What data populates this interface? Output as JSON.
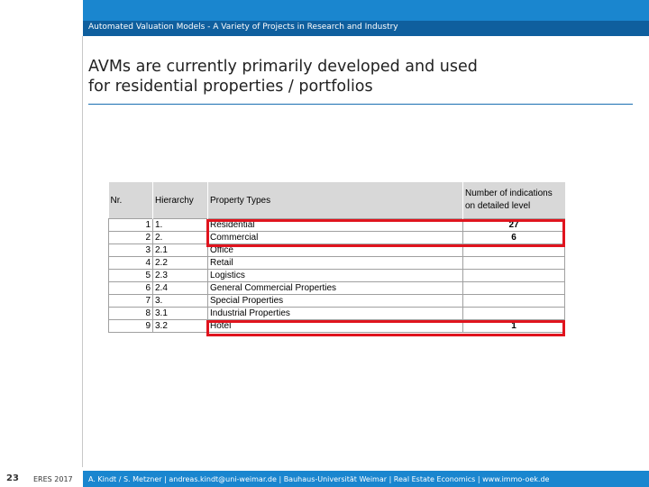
{
  "header": {
    "subtitle": "Automated Valuation Models - A Variety of Projects in Research and Industry"
  },
  "slide": {
    "title_line1": "AVMs are currently primarily developed and used",
    "title_line2": "for residential properties / portfolios"
  },
  "table": {
    "columns": [
      "Nr.",
      "Hierarchy",
      "Property Types",
      "Number of indications on detailed level"
    ],
    "rows": [
      {
        "nr": "1",
        "hierarchy": "1.",
        "type": "Residential",
        "count": "27"
      },
      {
        "nr": "2",
        "hierarchy": "2.",
        "type": "Commercial",
        "count": "6"
      },
      {
        "nr": "3",
        "hierarchy": "2.1",
        "type": "Office",
        "count": ""
      },
      {
        "nr": "4",
        "hierarchy": "2.2",
        "type": "Retail",
        "count": ""
      },
      {
        "nr": "5",
        "hierarchy": "2.3",
        "type": "Logistics",
        "count": ""
      },
      {
        "nr": "6",
        "hierarchy": "2.4",
        "type": "General Commercial Properties",
        "count": ""
      },
      {
        "nr": "7",
        "hierarchy": "3.",
        "type": "Special Properties",
        "count": ""
      },
      {
        "nr": "8",
        "hierarchy": "3.1",
        "type": "Industrial Properties",
        "count": ""
      },
      {
        "nr": "9",
        "hierarchy": "3.2",
        "type": "Hotel",
        "count": "1"
      }
    ],
    "highlight_color": "#e0141e"
  },
  "footer": {
    "page": "23",
    "event": "ERES 2017",
    "credits": "A. Kindt / S. Metzner | andreas.kindt@uni-weimar.de | Bauhaus-Universität Weimar | Real Estate Economics | www.immo-oek.de"
  },
  "colors": {
    "brand_blue": "#1a86cf",
    "dark_blue": "#0f5f9e"
  }
}
